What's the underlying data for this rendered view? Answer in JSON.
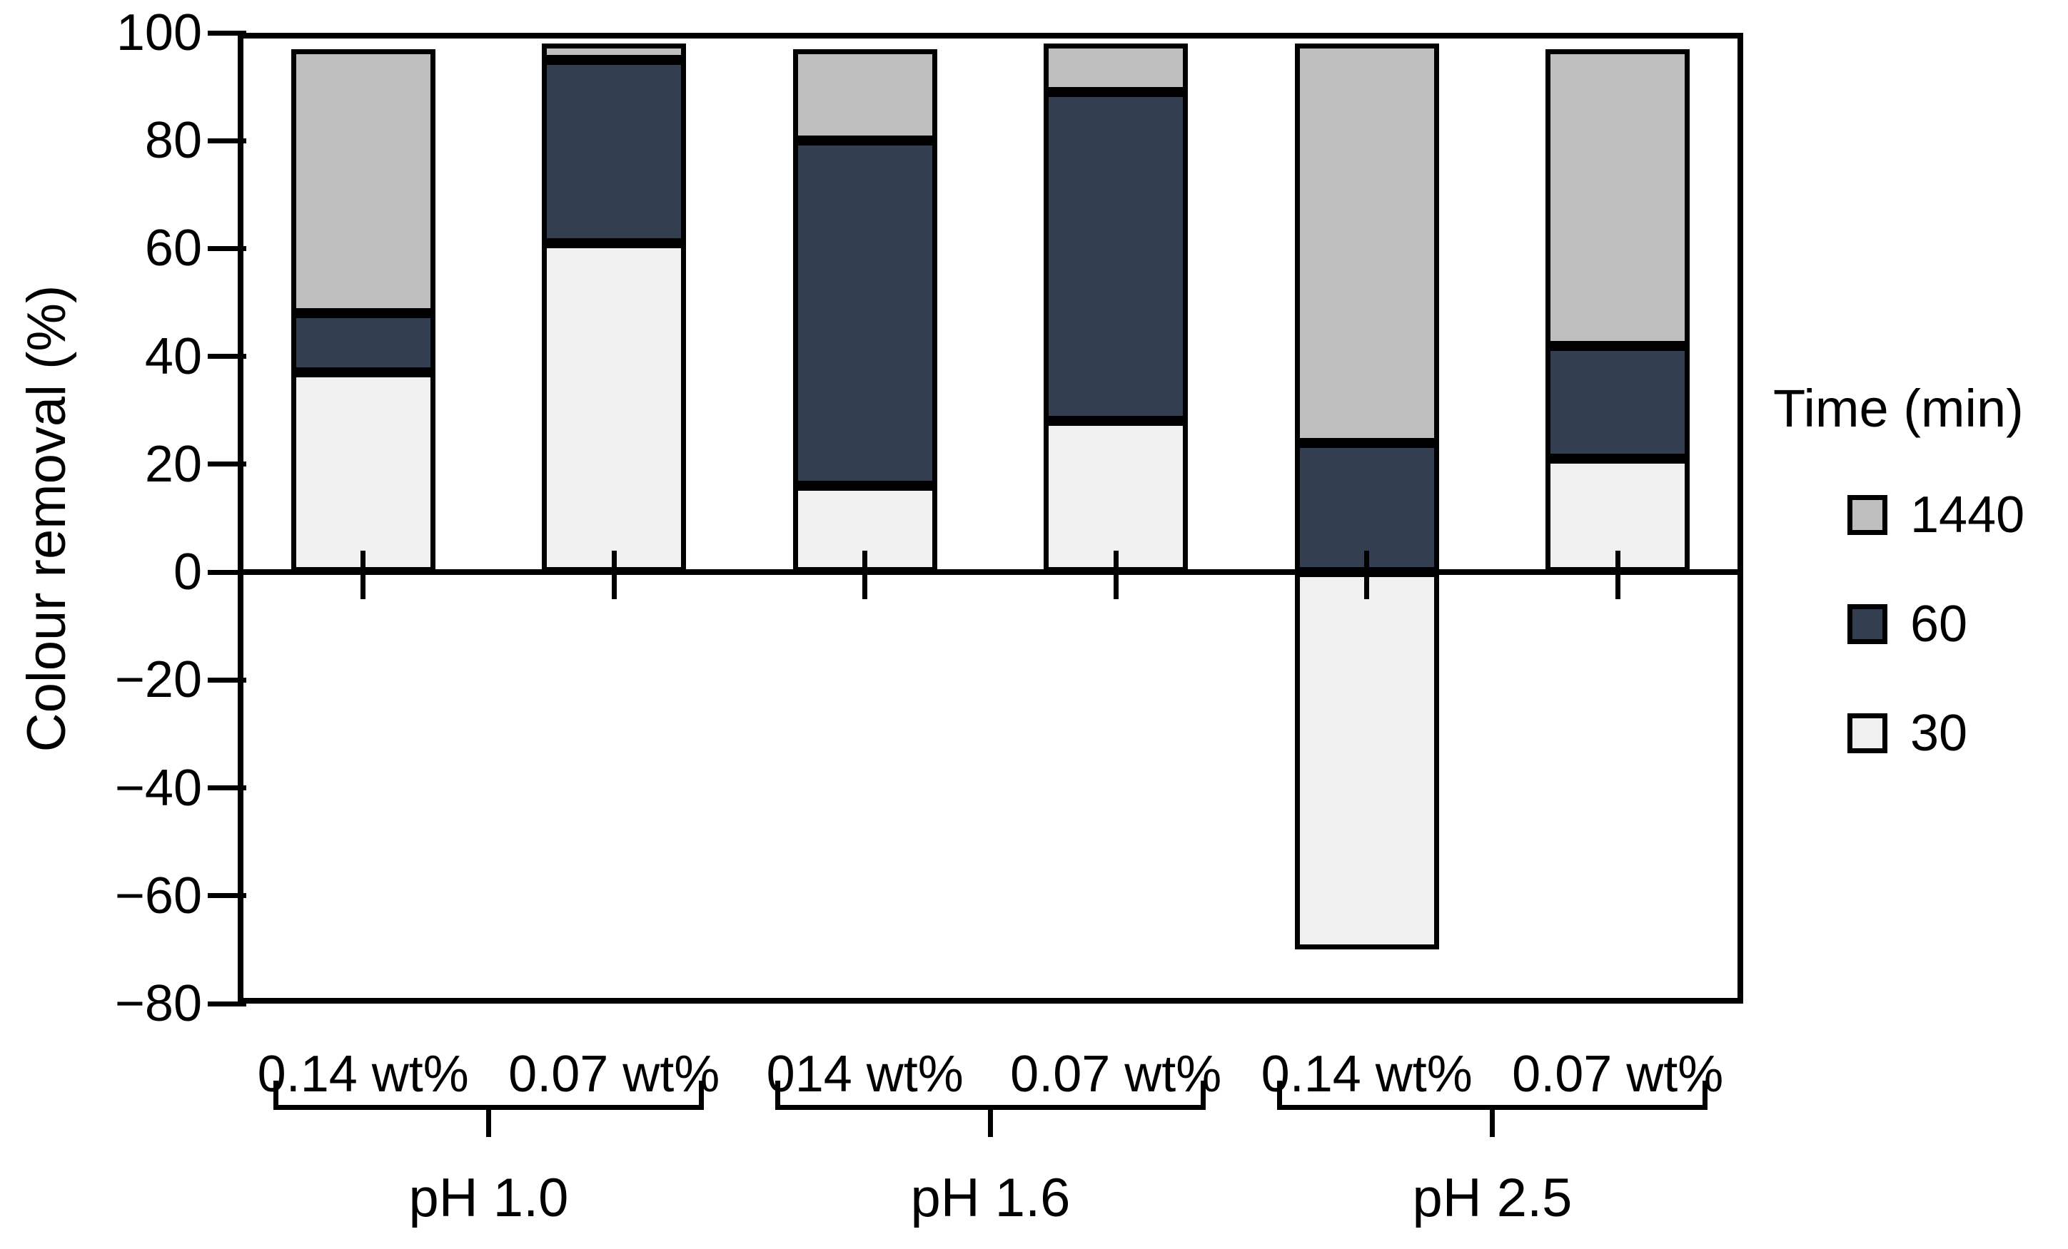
{
  "y_axis": {
    "label": "Colour removal (%)",
    "tick_values": [
      100,
      80,
      60,
      40,
      20,
      0,
      -20,
      -40,
      -60,
      -80
    ],
    "tick_labels": [
      "100",
      "80",
      "60",
      "40",
      "20",
      "0",
      "−20",
      "−40",
      "−60",
      "−80"
    ]
  },
  "legend": {
    "title": "Time (min)",
    "items": [
      {
        "label": "1440",
        "color": "#BFBFBF"
      },
      {
        "label": "60",
        "color": "#333F50"
      },
      {
        "label": "30",
        "color": "#F0F0F0"
      }
    ]
  },
  "colors": {
    "bar_border": "#000000",
    "frame": "#000000",
    "series_30": "#F0F0F0",
    "series_60": "#333F50",
    "series_1440": "#BFBFBF"
  },
  "chart_data": {
    "type": "bar",
    "stacked": true,
    "orientation": "vertical",
    "title": "",
    "xlabel": "",
    "ylabel": "Colour removal (%)",
    "ylim": [
      -80,
      100
    ],
    "ytick_step": 20,
    "grid": false,
    "legend_position": "right",
    "legend_title": "Time (min)",
    "categories": [
      "0.14 wt%",
      "0.07 wt%",
      "014 wt%",
      "0.07 wt%",
      "0.14 wt%",
      "0.07 wt%"
    ],
    "groups": [
      {
        "label": "pH 1.0",
        "from": 0,
        "to": 1
      },
      {
        "label": "pH 1.6",
        "from": 2,
        "to": 3
      },
      {
        "label": "pH 2.5",
        "from": 4,
        "to": 5
      }
    ],
    "series": [
      {
        "name": "30",
        "color": "#F0F0F0",
        "values": [
          37,
          61,
          16,
          28,
          -70,
          21
        ]
      },
      {
        "name": "60",
        "color": "#333F50",
        "values": [
          11,
          34,
          64,
          61,
          24,
          21
        ]
      },
      {
        "name": "1440",
        "color": "#BFBFBF",
        "values": [
          49,
          3,
          17,
          9,
          74,
          55
        ]
      }
    ],
    "stack_tops": [
      97,
      98,
      97,
      98,
      98,
      97
    ],
    "negative_note": "pH 2.5 / 0.14 wt% 30-min value extends to -70"
  }
}
